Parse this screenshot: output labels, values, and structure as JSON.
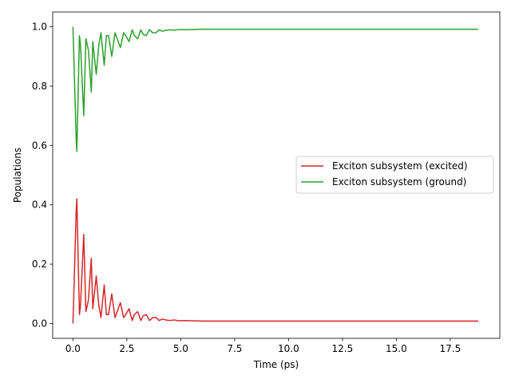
{
  "chart_data": {
    "type": "line",
    "title": "",
    "xlabel": "Time (ps)",
    "ylabel": "Populations",
    "xlim": [
      -0.94,
      19.8
    ],
    "ylim": [
      -0.05,
      1.05
    ],
    "xticks": [
      0.0,
      2.5,
      5.0,
      7.5,
      10.0,
      12.5,
      15.0,
      17.5
    ],
    "xtick_labels": [
      "0.0",
      "2.5",
      "5.0",
      "7.5",
      "10.0",
      "12.5",
      "15.0",
      "17.5"
    ],
    "yticks": [
      0.0,
      0.2,
      0.4,
      0.6,
      0.8,
      1.0
    ],
    "ytick_labels": [
      "0.0",
      "0.2",
      "0.4",
      "0.6",
      "0.8",
      "1.0"
    ],
    "grid": false,
    "legend_position": "center-right",
    "series": [
      {
        "name": "Exciton subsystem (excited)",
        "color": "#d62728",
        "x": [
          0.0,
          0.15,
          0.18,
          0.3,
          0.35,
          0.5,
          0.6,
          0.72,
          0.85,
          0.92,
          1.08,
          1.2,
          1.3,
          1.45,
          1.55,
          1.65,
          1.8,
          1.95,
          2.05,
          2.2,
          2.35,
          2.45,
          2.6,
          2.75,
          2.85,
          3.0,
          3.15,
          3.25,
          3.4,
          3.55,
          3.7,
          3.85,
          4.0,
          4.15,
          4.3,
          4.5,
          4.7,
          4.9,
          5.2,
          5.5,
          6.0,
          7.0,
          9.0,
          12.0,
          15.0,
          18.8
        ],
        "values": [
          0.0,
          0.38,
          0.42,
          0.03,
          0.06,
          0.3,
          0.04,
          0.08,
          0.22,
          0.05,
          0.16,
          0.06,
          0.02,
          0.13,
          0.03,
          0.03,
          0.1,
          0.02,
          0.04,
          0.07,
          0.02,
          0.03,
          0.05,
          0.01,
          0.03,
          0.04,
          0.01,
          0.025,
          0.03,
          0.01,
          0.02,
          0.02,
          0.01,
          0.015,
          0.012,
          0.01,
          0.012,
          0.009,
          0.01,
          0.009,
          0.008,
          0.008,
          0.008,
          0.008,
          0.008,
          0.008
        ]
      },
      {
        "name": "Exciton subsystem (ground)",
        "color": "#2ca02c",
        "x": [
          0.0,
          0.15,
          0.18,
          0.3,
          0.35,
          0.5,
          0.6,
          0.72,
          0.85,
          0.92,
          1.08,
          1.2,
          1.3,
          1.45,
          1.55,
          1.65,
          1.8,
          1.95,
          2.05,
          2.2,
          2.35,
          2.45,
          2.6,
          2.75,
          2.85,
          3.0,
          3.15,
          3.25,
          3.4,
          3.55,
          3.7,
          3.85,
          4.0,
          4.15,
          4.3,
          4.5,
          4.7,
          4.9,
          5.2,
          5.5,
          6.0,
          7.0,
          9.0,
          12.0,
          15.0,
          18.8
        ],
        "values": [
          1.0,
          0.62,
          0.58,
          0.97,
          0.94,
          0.7,
          0.96,
          0.92,
          0.78,
          0.95,
          0.84,
          0.94,
          0.98,
          0.87,
          0.97,
          0.97,
          0.9,
          0.98,
          0.96,
          0.93,
          0.98,
          0.97,
          0.95,
          0.99,
          0.97,
          0.96,
          0.99,
          0.975,
          0.97,
          0.99,
          0.98,
          0.98,
          0.99,
          0.985,
          0.988,
          0.99,
          0.988,
          0.991,
          0.99,
          0.991,
          0.992,
          0.992,
          0.992,
          0.992,
          0.992,
          0.992
        ]
      }
    ]
  }
}
